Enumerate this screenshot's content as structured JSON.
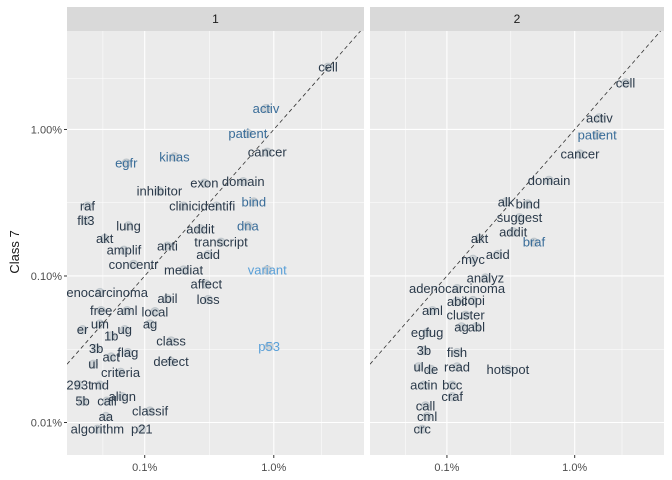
{
  "chart_data": {
    "type": "scatter",
    "facets": [
      "1",
      "2"
    ],
    "ylabel": "Class 7",
    "xlabel": "",
    "x_scale": "log10",
    "y_scale": "log10",
    "xlim": [
      0.00025,
      0.05
    ],
    "ylim": [
      6e-05,
      0.047
    ],
    "x_ticks": [
      {
        "value": 0.001,
        "label": "0.1%"
      },
      {
        "value": 0.01,
        "label": "1.0%"
      }
    ],
    "y_ticks": [
      {
        "value": 0.0001,
        "label": "0.01%"
      },
      {
        "value": 0.001,
        "label": "0.10%"
      },
      {
        "value": 0.01,
        "label": "1.00%"
      }
    ],
    "reference_line": "y = x",
    "grid": true,
    "colors": {
      "panel_bg": "#ebebeb",
      "strip_bg": "#d9d9d9",
      "grid": "#ffffff",
      "points": "#6a7f8e",
      "label_dark": "#2b3a4a",
      "label_mid": "#3a6d99",
      "label_light": "#5aa0d8"
    },
    "panels": [
      {
        "facet": "1",
        "words": [
          {
            "word": "cell",
            "x": 0.0263,
            "y": 0.0266,
            "shade": 1
          },
          {
            "word": "activ",
            "x": 0.0087,
            "y": 0.0139,
            "shade": 2
          },
          {
            "word": "patient",
            "x": 0.0063,
            "y": 0.0094,
            "shade": 2
          },
          {
            "word": "cancer",
            "x": 0.0089,
            "y": 0.007,
            "shade": 1
          },
          {
            "word": "egfr",
            "x": 0.00072,
            "y": 0.0059,
            "shade": 2
          },
          {
            "word": "kinas",
            "x": 0.0017,
            "y": 0.0065,
            "shade": 2
          },
          {
            "word": "exon",
            "x": 0.0029,
            "y": 0.0043,
            "shade": 1
          },
          {
            "word": "domain",
            "x": 0.0058,
            "y": 0.0044,
            "shade": 1
          },
          {
            "word": "inhibitor",
            "x": 0.0013,
            "y": 0.0038,
            "shade": 1
          },
          {
            "word": "raf",
            "x": 0.00036,
            "y": 0.003,
            "shade": 1
          },
          {
            "word": "clinic",
            "x": 0.002,
            "y": 0.003,
            "shade": 1
          },
          {
            "word": "identifi",
            "x": 0.0036,
            "y": 0.003,
            "shade": 1
          },
          {
            "word": "bind",
            "x": 0.007,
            "y": 0.0032,
            "shade": 2
          },
          {
            "word": "flt3",
            "x": 0.00035,
            "y": 0.0024,
            "shade": 1
          },
          {
            "word": "lung",
            "x": 0.00075,
            "y": 0.0022,
            "shade": 1
          },
          {
            "word": "addit",
            "x": 0.0027,
            "y": 0.0021,
            "shade": 1
          },
          {
            "word": "dna",
            "x": 0.0063,
            "y": 0.0022,
            "shade": 2
          },
          {
            "word": "akt",
            "x": 0.00049,
            "y": 0.0018,
            "shade": 1
          },
          {
            "word": "anti",
            "x": 0.0015,
            "y": 0.0016,
            "shade": 1
          },
          {
            "word": "transcript",
            "x": 0.0039,
            "y": 0.0017,
            "shade": 1
          },
          {
            "word": "amplif",
            "x": 0.00069,
            "y": 0.0015,
            "shade": 1
          },
          {
            "word": "acid",
            "x": 0.0031,
            "y": 0.0014,
            "shade": 1
          },
          {
            "word": "concentr",
            "x": 0.00082,
            "y": 0.0012,
            "shade": 1
          },
          {
            "word": "mediat",
            "x": 0.002,
            "y": 0.0011,
            "shade": 1
          },
          {
            "word": "variant",
            "x": 0.0089,
            "y": 0.0011,
            "shade": 3
          },
          {
            "word": "affect",
            "x": 0.003,
            "y": 0.00088,
            "shade": 1
          },
          {
            "word": "adenocarcinoma",
            "x": 0.00045,
            "y": 0.00077,
            "shade": 1
          },
          {
            "word": "abil",
            "x": 0.0015,
            "y": 0.0007,
            "shade": 1
          },
          {
            "word": "loss",
            "x": 0.0031,
            "y": 0.00069,
            "shade": 1
          },
          {
            "word": "free",
            "x": 0.00046,
            "y": 0.00058,
            "shade": 1
          },
          {
            "word": "aml",
            "x": 0.00073,
            "y": 0.00058,
            "shade": 1
          },
          {
            "word": "local",
            "x": 0.0012,
            "y": 0.00057,
            "shade": 1
          },
          {
            "word": "um",
            "x": 0.00045,
            "y": 0.00047,
            "shade": 1
          },
          {
            "word": "ag",
            "x": 0.0011,
            "y": 0.00047,
            "shade": 1
          },
          {
            "word": "er",
            "x": 0.00033,
            "y": 0.00043,
            "shade": 1
          },
          {
            "word": "ug",
            "x": 0.0007,
            "y": 0.00043,
            "shade": 1
          },
          {
            "word": "1b",
            "x": 0.00055,
            "y": 0.00039,
            "shade": 1
          },
          {
            "word": "class",
            "x": 0.0016,
            "y": 0.00036,
            "shade": 1
          },
          {
            "word": "3b",
            "x": 0.00042,
            "y": 0.00032,
            "shade": 1
          },
          {
            "word": "p53",
            "x": 0.0092,
            "y": 0.00033,
            "shade": 3
          },
          {
            "word": "flag",
            "x": 0.00074,
            "y": 0.0003,
            "shade": 1
          },
          {
            "word": "act",
            "x": 0.00055,
            "y": 0.00028,
            "shade": 1
          },
          {
            "word": "defect",
            "x": 0.0016,
            "y": 0.00026,
            "shade": 1
          },
          {
            "word": "ul",
            "x": 0.0004,
            "y": 0.00025,
            "shade": 1
          },
          {
            "word": "criteria",
            "x": 0.00065,
            "y": 0.00022,
            "shade": 1
          },
          {
            "word": "293t",
            "x": 0.00031,
            "y": 0.00018,
            "shade": 1
          },
          {
            "word": "md",
            "x": 0.00045,
            "y": 0.00018,
            "shade": 1
          },
          {
            "word": "align",
            "x": 0.00067,
            "y": 0.00015,
            "shade": 1
          },
          {
            "word": "5b",
            "x": 0.00033,
            "y": 0.00014,
            "shade": 1
          },
          {
            "word": "call",
            "x": 0.00051,
            "y": 0.00014,
            "shade": 1
          },
          {
            "word": "classif",
            "x": 0.0011,
            "y": 0.00012,
            "shade": 1
          },
          {
            "word": "aa",
            "x": 0.0005,
            "y": 0.00011,
            "shade": 1
          },
          {
            "word": "algorithm",
            "x": 0.00043,
            "y": 9e-05,
            "shade": 1
          },
          {
            "word": "p21",
            "x": 0.00095,
            "y": 9e-05,
            "shade": 1
          }
        ]
      },
      {
        "facet": "2",
        "words": [
          {
            "word": "cell",
            "x": 0.025,
            "y": 0.0208,
            "shade": 1
          },
          {
            "word": "activ",
            "x": 0.0156,
            "y": 0.012,
            "shade": 1
          },
          {
            "word": "patient",
            "x": 0.015,
            "y": 0.0092,
            "shade": 2
          },
          {
            "word": "cancer",
            "x": 0.011,
            "y": 0.0068,
            "shade": 1
          },
          {
            "word": "domain",
            "x": 0.0063,
            "y": 0.0045,
            "shade": 1
          },
          {
            "word": "alk",
            "x": 0.0029,
            "y": 0.0032,
            "shade": 1
          },
          {
            "word": "bind",
            "x": 0.0043,
            "y": 0.0031,
            "shade": 1
          },
          {
            "word": "suggest",
            "x": 0.0037,
            "y": 0.0025,
            "shade": 1
          },
          {
            "word": "addit",
            "x": 0.0033,
            "y": 0.002,
            "shade": 1
          },
          {
            "word": "braf",
            "x": 0.0048,
            "y": 0.0017,
            "shade": 2
          },
          {
            "word": "akt",
            "x": 0.0018,
            "y": 0.0018,
            "shade": 1
          },
          {
            "word": "acid",
            "x": 0.0025,
            "y": 0.0014,
            "shade": 1
          },
          {
            "word": "myc",
            "x": 0.0016,
            "y": 0.0013,
            "shade": 1
          },
          {
            "word": "analyz",
            "x": 0.002,
            "y": 0.00097,
            "shade": 1
          },
          {
            "word": "adenocarcinoma",
            "x": 0.0012,
            "y": 0.00082,
            "shade": 1
          },
          {
            "word": "abil",
            "x": 0.0012,
            "y": 0.00067,
            "shade": 1
          },
          {
            "word": "copi",
            "x": 0.0016,
            "y": 0.00068,
            "shade": 1
          },
          {
            "word": "aml",
            "x": 0.00077,
            "y": 0.00058,
            "shade": 1
          },
          {
            "word": "cluster",
            "x": 0.0014,
            "y": 0.00054,
            "shade": 1
          },
          {
            "word": "ag",
            "x": 0.0013,
            "y": 0.00045,
            "shade": 1
          },
          {
            "word": "abl",
            "x": 0.0017,
            "y": 0.00045,
            "shade": 1
          },
          {
            "word": "egfug",
            "x": 0.0007,
            "y": 0.00041,
            "shade": 1
          },
          {
            "word": "3b",
            "x": 0.00066,
            "y": 0.00031,
            "shade": 1
          },
          {
            "word": "fish",
            "x": 0.0012,
            "y": 0.0003,
            "shade": 1
          },
          {
            "word": "ul",
            "x": 0.0006,
            "y": 0.00024,
            "shade": 1
          },
          {
            "word": "de",
            "x": 0.00075,
            "y": 0.00023,
            "shade": 1
          },
          {
            "word": "read",
            "x": 0.0012,
            "y": 0.00024,
            "shade": 1
          },
          {
            "word": "hotspot",
            "x": 0.003,
            "y": 0.00023,
            "shade": 1
          },
          {
            "word": "actin",
            "x": 0.00066,
            "y": 0.00018,
            "shade": 1
          },
          {
            "word": "bcc",
            "x": 0.0011,
            "y": 0.00018,
            "shade": 1
          },
          {
            "word": "craf",
            "x": 0.0011,
            "y": 0.00015,
            "shade": 1
          },
          {
            "word": "call",
            "x": 0.00068,
            "y": 0.00013,
            "shade": 1
          },
          {
            "word": "cml",
            "x": 0.0007,
            "y": 0.00011,
            "shade": 1
          },
          {
            "word": "crc",
            "x": 0.00064,
            "y": 9e-05,
            "shade": 1
          }
        ]
      }
    ]
  }
}
